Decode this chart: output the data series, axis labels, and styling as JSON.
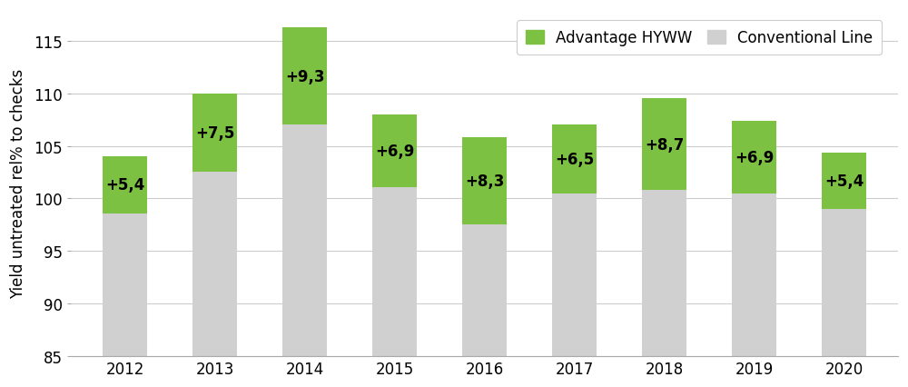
{
  "years": [
    "2012",
    "2013",
    "2014",
    "2015",
    "2016",
    "2017",
    "2018",
    "2019",
    "2020"
  ],
  "conventional_tops": [
    98.6,
    102.5,
    107.0,
    101.1,
    97.5,
    100.5,
    100.8,
    100.5,
    99.0
  ],
  "advantages": [
    5.4,
    7.5,
    9.3,
    6.9,
    8.3,
    6.5,
    8.7,
    6.9,
    5.4
  ],
  "labels": [
    "+5,4",
    "+7,5",
    "+9,3",
    "+6,9",
    "+8,3",
    "+6,5",
    "+8,7",
    "+6,9",
    "+5,4"
  ],
  "ymin": 85,
  "ymax": 118,
  "yticks": [
    85,
    90,
    95,
    100,
    105,
    110,
    115
  ],
  "ylabel": "Yield untreated rel% to checks",
  "bar_color_gray": "#d0d0d0",
  "bar_color_green": "#7dc142",
  "legend_label_green": "Advantage HYWW",
  "legend_label_gray": "Conventional Line",
  "background_color": "#ffffff",
  "grid_color": "#cccccc",
  "label_fontsize": 12,
  "axis_fontsize": 12,
  "legend_fontsize": 12,
  "bar_width": 0.5
}
